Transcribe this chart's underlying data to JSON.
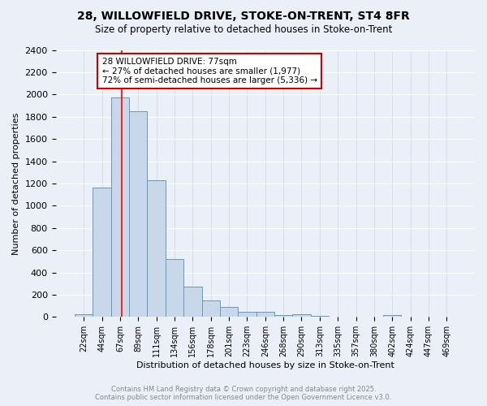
{
  "title1": "28, WILLOWFIELD DRIVE, STOKE-ON-TRENT, ST4 8FR",
  "title2": "Size of property relative to detached houses in Stoke-on-Trent",
  "xlabel": "Distribution of detached houses by size in Stoke-on-Trent",
  "ylabel": "Number of detached properties",
  "bar_labels": [
    "22sqm",
    "44sqm",
    "67sqm",
    "89sqm",
    "111sqm",
    "134sqm",
    "156sqm",
    "178sqm",
    "201sqm",
    "223sqm",
    "246sqm",
    "268sqm",
    "290sqm",
    "313sqm",
    "335sqm",
    "357sqm",
    "380sqm",
    "402sqm",
    "424sqm",
    "447sqm",
    "469sqm"
  ],
  "bar_values": [
    25,
    1160,
    1970,
    1850,
    1230,
    520,
    275,
    150,
    90,
    45,
    45,
    20,
    25,
    10,
    5,
    3,
    2,
    15,
    2,
    2,
    2
  ],
  "bar_color": "#c8d8ea",
  "bar_edge_color": "#6699bb",
  "ylim": [
    0,
    2400
  ],
  "yticks": [
    0,
    200,
    400,
    600,
    800,
    1000,
    1200,
    1400,
    1600,
    1800,
    2000,
    2200,
    2400
  ],
  "red_line_x": 2.1,
  "annotation_text": "28 WILLOWFIELD DRIVE: 77sqm\n← 27% of detached houses are smaller (1,977)\n72% of semi-detached houses are larger (5,336) →",
  "annotation_box_color": "#ffffff",
  "annotation_box_edge": "#cc0000",
  "footer1": "Contains HM Land Registry data © Crown copyright and database right 2025.",
  "footer2": "Contains public sector information licensed under the Open Government Licence v3.0.",
  "background_color": "#eaeff8",
  "plot_bg_color": "#eaeff8",
  "grid_color": "#d0daea"
}
